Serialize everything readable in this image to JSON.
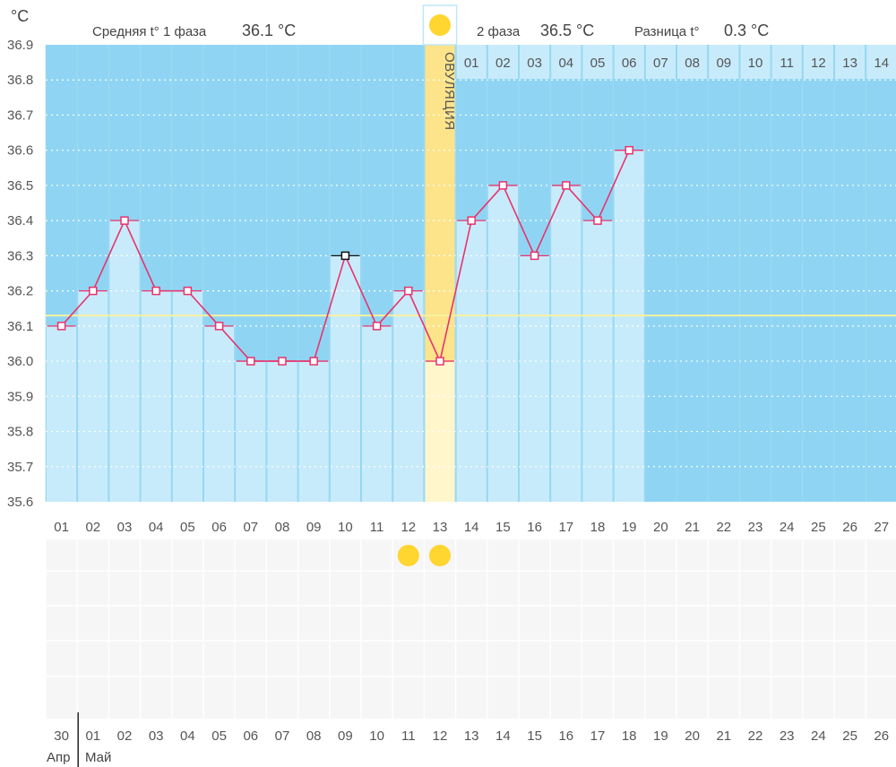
{
  "header": {
    "unit_label": "°C",
    "phase1_label": "Средняя t° 1 фаза",
    "phase1_value": "36.1 °C",
    "phase2_label": "2 фаза",
    "phase2_value": "36.5 °C",
    "diff_label": "Разница t°",
    "diff_value": "0.3 °C"
  },
  "ovulation_label": "ОВУЛЯЦИЯ",
  "colors": {
    "background_blue": "#8fd5f3",
    "bar_fill": "#c8ebfb",
    "ovulation_band": "#fde48a",
    "line": "#e8336c",
    "cover_line": "#f7f1a0",
    "sun": "#ffd530",
    "red_day": "#e0245e",
    "blue_day": "#1a73b5"
  },
  "chart_data": {
    "type": "line",
    "x": [
      "01",
      "02",
      "03",
      "04",
      "05",
      "06",
      "07",
      "08",
      "09",
      "10",
      "11",
      "12",
      "13",
      "14",
      "15",
      "16",
      "17",
      "18",
      "19"
    ],
    "values": [
      36.1,
      36.2,
      36.4,
      36.2,
      36.2,
      36.1,
      36.0,
      36.0,
      36.0,
      36.3,
      36.1,
      36.2,
      36.0,
      36.4,
      36.5,
      36.3,
      36.5,
      36.4,
      36.6
    ],
    "highlighted_point_day": "10",
    "ylim": [
      35.6,
      36.9
    ],
    "yticks": [
      "36.9",
      "36.8",
      "36.7",
      "36.6",
      "36.5",
      "36.4",
      "36.3",
      "36.2",
      "36.1",
      "36.0",
      "35.9",
      "35.8",
      "35.7",
      "35.6"
    ],
    "cover_line_value": 36.13,
    "ovulation_day": "13",
    "cycle_day_labels": [
      "01",
      "02",
      "03",
      "04",
      "05",
      "06",
      "07",
      "08",
      "09",
      "10",
      "11",
      "12",
      "13",
      "14",
      "15",
      "16",
      "17",
      "18",
      "19",
      "20",
      "21",
      "22",
      "23",
      "24",
      "25",
      "26",
      "27"
    ],
    "current_day": "19",
    "phase2_day_labels": [
      "01",
      "02",
      "03",
      "04",
      "05",
      "06",
      "07",
      "08",
      "09",
      "10",
      "11",
      "12",
      "13",
      "14"
    ],
    "sun_marker_days": [
      "12",
      "13"
    ],
    "grid": true
  },
  "calendar": {
    "dates": [
      "30",
      "01",
      "02",
      "03",
      "04",
      "05",
      "06",
      "07",
      "08",
      "09",
      "10",
      "11",
      "12",
      "13",
      "14",
      "15",
      "16",
      "17",
      "18",
      "19",
      "20",
      "21",
      "22",
      "23",
      "24",
      "25",
      "26"
    ],
    "red_indices": [
      2,
      3,
      9,
      10,
      16,
      17,
      23,
      24
    ],
    "blue_index": 18,
    "month_prev": "Апр",
    "month_cur": "Май"
  }
}
